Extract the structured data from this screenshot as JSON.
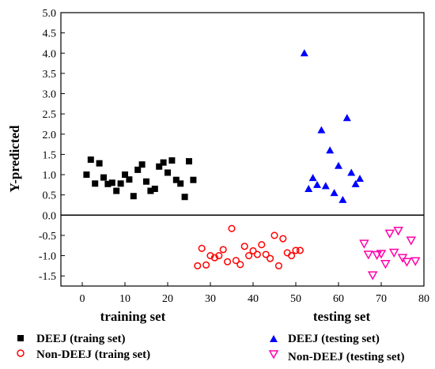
{
  "chart_data": {
    "type": "scatter",
    "ylabel": "Y-predicted",
    "xlabel_left": "training set",
    "xlabel_right": "testing set",
    "xlim": [
      -5,
      80
    ],
    "ylim": [
      -1.75,
      5.0
    ],
    "x_ticks": [
      0,
      10,
      20,
      30,
      40,
      50,
      60,
      70,
      80
    ],
    "y_ticks": [
      -1.5,
      -1.0,
      -0.5,
      0.0,
      0.5,
      1.0,
      1.5,
      2.0,
      2.5,
      3.0,
      3.5,
      4.0,
      4.5,
      5.0
    ],
    "x_tick_labels": [
      "0",
      "10",
      "20",
      "30",
      "40",
      "50",
      "60",
      "70",
      "80"
    ],
    "y_tick_labels": [
      "-1.5",
      "-1.0",
      "-0.5",
      "0.0",
      "0.5",
      "1.0",
      "1.5",
      "2.0",
      "2.5",
      "3.0",
      "3.5",
      "4.0",
      "4.5",
      "5.0"
    ],
    "zero_line": 0,
    "legend_placement": "bottom",
    "series": [
      {
        "name": "DEEJ (traing set)",
        "marker": "square-filled",
        "color": "#000000",
        "points": [
          [
            1,
            1.0
          ],
          [
            2,
            1.37
          ],
          [
            3,
            0.78
          ],
          [
            4,
            1.28
          ],
          [
            5,
            0.93
          ],
          [
            6,
            0.77
          ],
          [
            7,
            0.8
          ],
          [
            8,
            0.6
          ],
          [
            9,
            0.78
          ],
          [
            10,
            1.0
          ],
          [
            11,
            0.88
          ],
          [
            12,
            0.47
          ],
          [
            13,
            1.12
          ],
          [
            14,
            1.25
          ],
          [
            15,
            0.83
          ],
          [
            16,
            0.6
          ],
          [
            17,
            0.65
          ],
          [
            18,
            1.2
          ],
          [
            19,
            1.3
          ],
          [
            20,
            1.05
          ],
          [
            21,
            1.35
          ],
          [
            22,
            0.87
          ],
          [
            23,
            0.78
          ],
          [
            24,
            0.45
          ],
          [
            25,
            1.33
          ],
          [
            26,
            0.87
          ]
        ]
      },
      {
        "name": "Non-DEEJ (traing set)",
        "marker": "circle-open",
        "color": "#ff0000",
        "points": [
          [
            27,
            -1.25
          ],
          [
            28,
            -0.82
          ],
          [
            29,
            -1.23
          ],
          [
            30,
            -1.0
          ],
          [
            31,
            -1.05
          ],
          [
            32,
            -1.0
          ],
          [
            33,
            -0.85
          ],
          [
            34,
            -1.15
          ],
          [
            35,
            -0.33
          ],
          [
            36,
            -1.12
          ],
          [
            37,
            -1.22
          ],
          [
            38,
            -0.77
          ],
          [
            39,
            -1.0
          ],
          [
            40,
            -0.88
          ],
          [
            41,
            -0.97
          ],
          [
            42,
            -0.73
          ],
          [
            43,
            -0.97
          ],
          [
            44,
            -1.07
          ],
          [
            45,
            -0.5
          ],
          [
            46,
            -1.25
          ],
          [
            47,
            -0.58
          ],
          [
            48,
            -0.93
          ],
          [
            49,
            -1.0
          ],
          [
            50,
            -0.87
          ],
          [
            51,
            -0.87
          ]
        ]
      },
      {
        "name": "DEEJ (testing set)",
        "marker": "triangle-up-filled",
        "color": "#0000ff",
        "points": [
          [
            52,
            4.0
          ],
          [
            53,
            0.65
          ],
          [
            54,
            0.92
          ],
          [
            55,
            0.75
          ],
          [
            56,
            2.1
          ],
          [
            57,
            0.72
          ],
          [
            58,
            1.6
          ],
          [
            59,
            0.55
          ],
          [
            60,
            1.22
          ],
          [
            61,
            0.38
          ],
          [
            62,
            2.4
          ],
          [
            63,
            1.05
          ],
          [
            64,
            0.77
          ],
          [
            65,
            0.9
          ]
        ]
      },
      {
        "name": "Non-DEEJ (testing set)",
        "marker": "triangle-down-open",
        "color": "#ff00aa",
        "points": [
          [
            66,
            -0.7
          ],
          [
            67,
            -0.97
          ],
          [
            68,
            -1.48
          ],
          [
            69,
            -0.98
          ],
          [
            70,
            -0.95
          ],
          [
            71,
            -1.2
          ],
          [
            72,
            -0.45
          ],
          [
            73,
            -0.92
          ],
          [
            74,
            -0.38
          ],
          [
            75,
            -1.05
          ],
          [
            76,
            -1.15
          ],
          [
            77,
            -0.62
          ],
          [
            78,
            -1.13
          ]
        ]
      }
    ]
  }
}
